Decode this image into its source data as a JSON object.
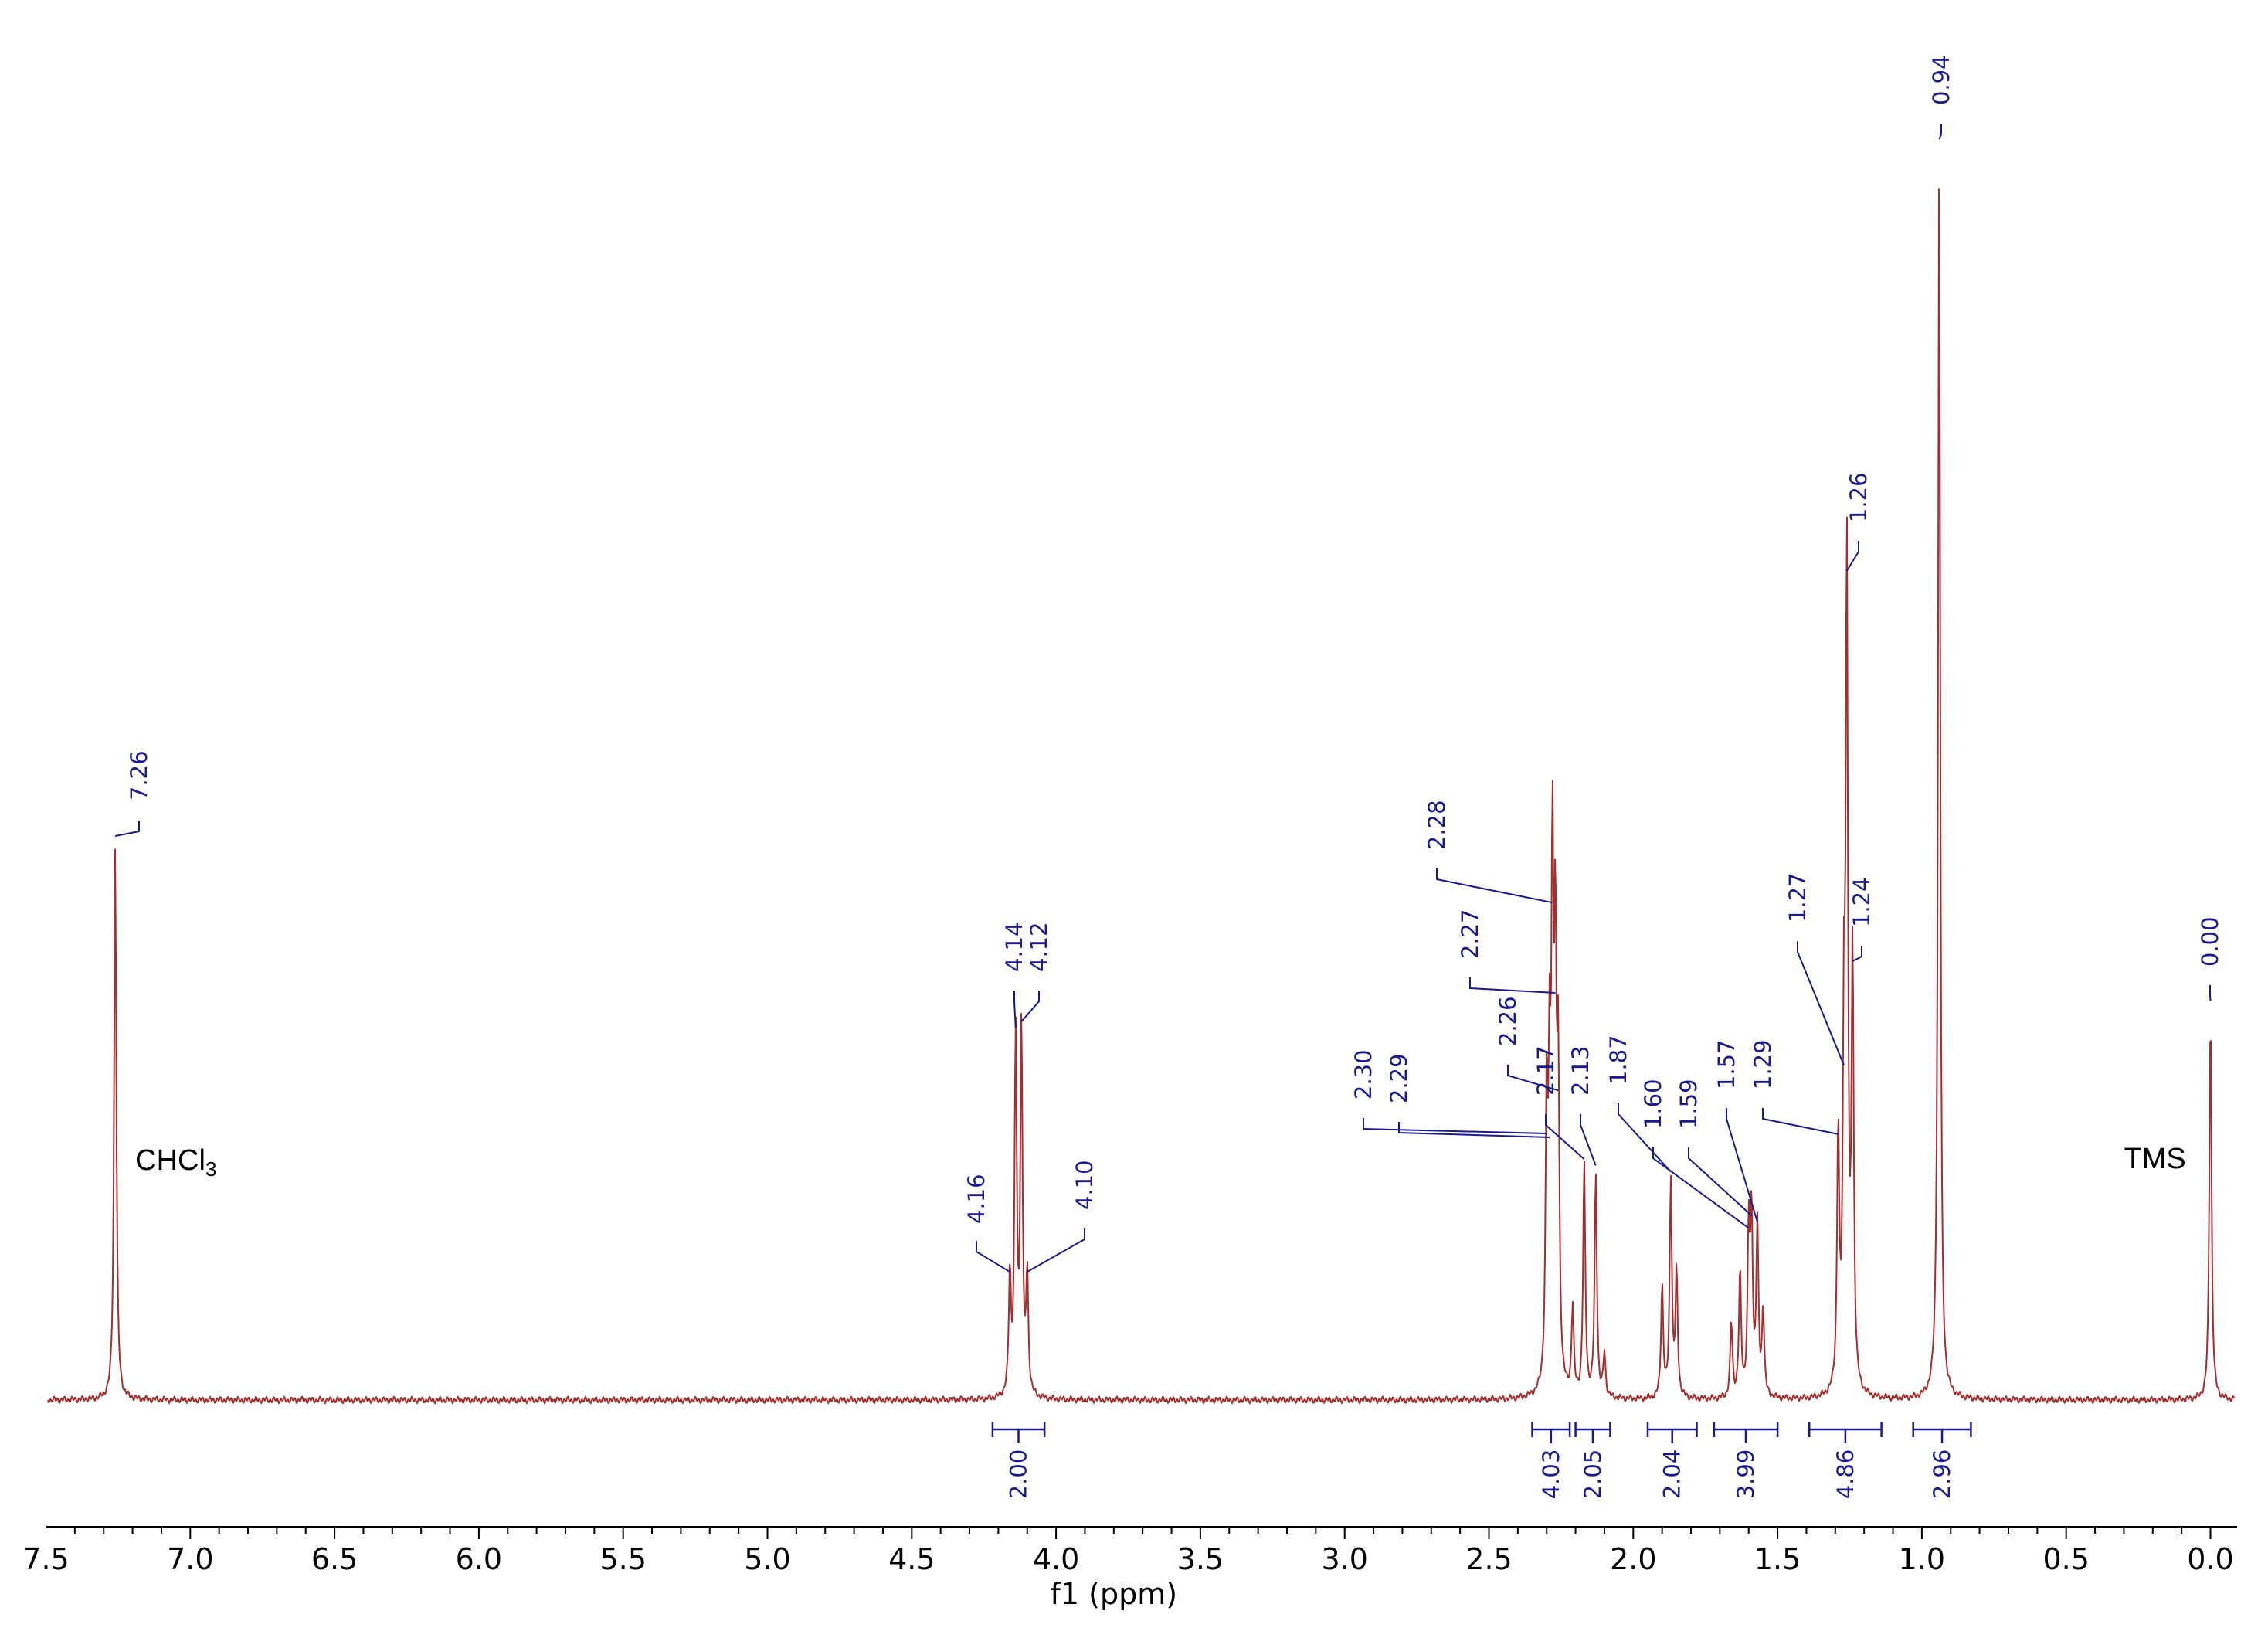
{
  "chart_data": {
    "type": "line",
    "title": "",
    "xlabel": "f1 (ppm)",
    "ylabel": "",
    "x_reversed": true,
    "xlim": [
      7.62,
      -0.1
    ],
    "ylim": [
      0,
      1.0
    ],
    "xticks": [
      "7.5",
      "7.0",
      "6.5",
      "6.0",
      "5.5",
      "5.0",
      "4.5",
      "4.0",
      "3.5",
      "3.0",
      "2.5",
      "2.0",
      "1.5",
      "1.0",
      "0.5",
      "0.0"
    ],
    "colors": {
      "spectrum": "#a33030",
      "labels": "#1a1a8c",
      "axis": "#000000"
    },
    "peaks": [
      {
        "ppm": 7.26,
        "intensity": 0.445,
        "label": "7.26"
      },
      {
        "ppm": 4.16,
        "intensity": 0.095,
        "label": "4.16"
      },
      {
        "ppm": 4.14,
        "intensity": 0.29,
        "label": "4.14"
      },
      {
        "ppm": 4.12,
        "intensity": 0.295,
        "label": "4.12"
      },
      {
        "ppm": 4.1,
        "intensity": 0.095,
        "label": "4.10"
      },
      {
        "ppm": 2.3,
        "intensity": 0.22,
        "label": "2.30"
      },
      {
        "ppm": 2.29,
        "intensity": 0.215,
        "label": "2.29"
      },
      {
        "ppm": 2.28,
        "intensity": 0.39,
        "label": "2.28"
      },
      {
        "ppm": 2.27,
        "intensity": 0.32,
        "label": "2.27"
      },
      {
        "ppm": 2.26,
        "intensity": 0.24,
        "label": "2.26"
      },
      {
        "ppm": 2.21,
        "intensity": 0.07,
        "label": ""
      },
      {
        "ppm": 2.17,
        "intensity": 0.185,
        "label": "2.17"
      },
      {
        "ppm": 2.13,
        "intensity": 0.18,
        "label": "2.13"
      },
      {
        "ppm": 2.1,
        "intensity": 0.035,
        "label": ""
      },
      {
        "ppm": 1.9,
        "intensity": 0.09,
        "label": ""
      },
      {
        "ppm": 1.87,
        "intensity": 0.175,
        "label": "1.87"
      },
      {
        "ppm": 1.85,
        "intensity": 0.1,
        "label": ""
      },
      {
        "ppm": 1.66,
        "intensity": 0.06,
        "label": ""
      },
      {
        "ppm": 1.63,
        "intensity": 0.1,
        "label": ""
      },
      {
        "ppm": 1.6,
        "intensity": 0.13,
        "label": "1.60"
      },
      {
        "ppm": 1.59,
        "intensity": 0.14,
        "label": "1.59"
      },
      {
        "ppm": 1.57,
        "intensity": 0.135,
        "label": "1.57"
      },
      {
        "ppm": 1.55,
        "intensity": 0.07,
        "label": ""
      },
      {
        "ppm": 1.29,
        "intensity": 0.205,
        "label": "1.29"
      },
      {
        "ppm": 1.27,
        "intensity": 0.26,
        "label": "1.27"
      },
      {
        "ppm": 1.26,
        "intensity": 0.655,
        "label": "1.26"
      },
      {
        "ppm": 1.24,
        "intensity": 0.345,
        "label": "1.24"
      },
      {
        "ppm": 0.94,
        "intensity": 1.0,
        "label": "0.94"
      },
      {
        "ppm": 0.0,
        "intensity": 0.313,
        "label": "0.00"
      }
    ],
    "integrals": [
      {
        "from": 4.22,
        "to": 4.04,
        "value": "2.00"
      },
      {
        "from": 2.35,
        "to": 2.22,
        "value": "4.03"
      },
      {
        "from": 2.2,
        "to": 2.08,
        "value": "2.05"
      },
      {
        "from": 1.95,
        "to": 1.78,
        "value": "2.04"
      },
      {
        "from": 1.72,
        "to": 1.5,
        "value": "3.99"
      },
      {
        "from": 1.39,
        "to": 1.14,
        "value": "4.86"
      },
      {
        "from": 1.03,
        "to": 0.83,
        "value": "2.96"
      }
    ],
    "annotations": [
      {
        "text": "CHCl",
        "sub": "3",
        "ppm": 7.26
      },
      {
        "text": "TMS",
        "ppm": 0.0
      }
    ]
  }
}
